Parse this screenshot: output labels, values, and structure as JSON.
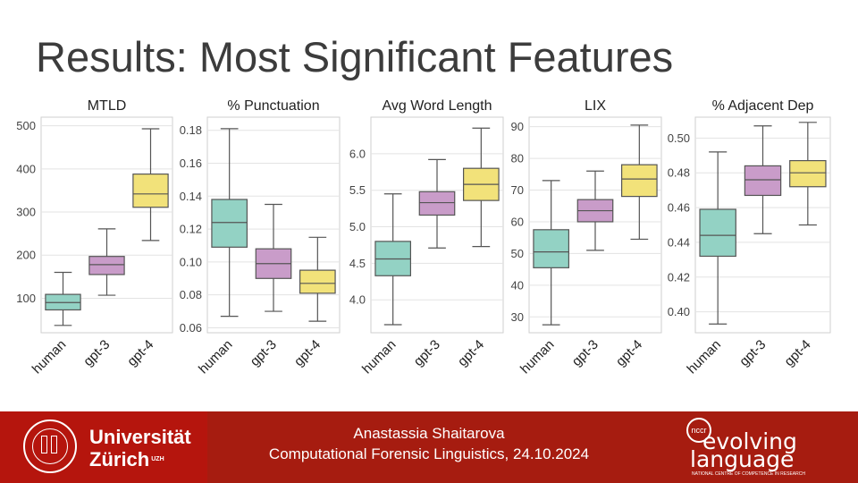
{
  "slide_title": "Results: Most Significant Features",
  "chart_data": [
    {
      "type": "box",
      "title": "MTLD",
      "categories": [
        "human",
        "gpt-3",
        "gpt-4"
      ],
      "colors": [
        "#93d2c4",
        "#c99cc9",
        "#f2e27a"
      ],
      "yticks": [
        100,
        200,
        300,
        400,
        500
      ],
      "ylim": [
        20,
        520
      ],
      "boxes": [
        {
          "whisker_low": 37,
          "q1": 73,
          "median": 90,
          "q3": 109,
          "whisker_high": 160
        },
        {
          "whisker_low": 107,
          "q1": 155,
          "median": 178,
          "q3": 197,
          "whisker_high": 261
        },
        {
          "whisker_low": 234,
          "q1": 311,
          "median": 342,
          "q3": 388,
          "whisker_high": 493
        }
      ]
    },
    {
      "type": "box",
      "title": "% Punctuation",
      "categories": [
        "human",
        "gpt-3",
        "gpt-4"
      ],
      "colors": [
        "#93d2c4",
        "#c99cc9",
        "#f2e27a"
      ],
      "yticks": [
        0.06,
        0.08,
        0.1,
        0.12,
        0.14,
        0.16,
        0.18
      ],
      "ytick_labels": [
        "0.06",
        "0.08",
        "0.10",
        "0.12",
        "0.14",
        "0.16",
        "0.18"
      ],
      "ylim": [
        0.057,
        0.188
      ],
      "boxes": [
        {
          "whisker_low": 0.067,
          "q1": 0.109,
          "median": 0.124,
          "q3": 0.138,
          "whisker_high": 0.181
        },
        {
          "whisker_low": 0.07,
          "q1": 0.09,
          "median": 0.099,
          "q3": 0.108,
          "whisker_high": 0.135
        },
        {
          "whisker_low": 0.064,
          "q1": 0.081,
          "median": 0.087,
          "q3": 0.095,
          "whisker_high": 0.115
        }
      ]
    },
    {
      "type": "box",
      "title": "Avg Word Length",
      "categories": [
        "human",
        "gpt-3",
        "gpt-4"
      ],
      "colors": [
        "#93d2c4",
        "#c99cc9",
        "#f2e27a"
      ],
      "yticks": [
        4.0,
        4.5,
        5.0,
        5.5,
        6.0
      ],
      "ytick_labels": [
        "4.0",
        "4.5",
        "5.0",
        "5.5",
        "6.0"
      ],
      "ylim": [
        3.55,
        6.5
      ],
      "boxes": [
        {
          "whisker_low": 3.66,
          "q1": 4.33,
          "median": 4.56,
          "q3": 4.8,
          "whisker_high": 5.45
        },
        {
          "whisker_low": 4.71,
          "q1": 5.16,
          "median": 5.33,
          "q3": 5.48,
          "whisker_high": 5.92
        },
        {
          "whisker_low": 4.73,
          "q1": 5.36,
          "median": 5.58,
          "q3": 5.8,
          "whisker_high": 6.35
        }
      ]
    },
    {
      "type": "box",
      "title": "LIX",
      "categories": [
        "human",
        "gpt-3",
        "gpt-4"
      ],
      "colors": [
        "#93d2c4",
        "#c99cc9",
        "#f2e27a"
      ],
      "yticks": [
        30,
        40,
        50,
        60,
        70,
        80,
        90
      ],
      "ylim": [
        25,
        93
      ],
      "boxes": [
        {
          "whisker_low": 27.5,
          "q1": 45.5,
          "median": 50.5,
          "q3": 57.5,
          "whisker_high": 73
        },
        {
          "whisker_low": 51,
          "q1": 60,
          "median": 63.5,
          "q3": 67,
          "whisker_high": 76
        },
        {
          "whisker_low": 54.5,
          "q1": 68,
          "median": 73.5,
          "q3": 78,
          "whisker_high": 90.5
        }
      ]
    },
    {
      "type": "box",
      "title": "% Adjacent Dep",
      "categories": [
        "human",
        "gpt-3",
        "gpt-4"
      ],
      "colors": [
        "#93d2c4",
        "#c99cc9",
        "#f2e27a"
      ],
      "yticks": [
        0.4,
        0.42,
        0.44,
        0.46,
        0.48,
        0.5
      ],
      "ytick_labels": [
        "0.40",
        "0.42",
        "0.44",
        "0.46",
        "0.48",
        "0.50"
      ],
      "ylim": [
        0.388,
        0.512
      ],
      "boxes": [
        {
          "whisker_low": 0.393,
          "q1": 0.432,
          "median": 0.444,
          "q3": 0.459,
          "whisker_high": 0.492
        },
        {
          "whisker_low": 0.445,
          "q1": 0.467,
          "median": 0.476,
          "q3": 0.484,
          "whisker_high": 0.507
        },
        {
          "whisker_low": 0.45,
          "q1": 0.472,
          "median": 0.48,
          "q3": 0.487,
          "whisker_high": 0.509
        }
      ]
    }
  ],
  "footer": {
    "university_line1": "Universität",
    "university_line2": "Zürich",
    "university_sup": "UZH",
    "author": "Anastassia Shaitarova",
    "event": "Computational Forensic Linguistics, 24.10.2024",
    "nccr_badge": "nccr",
    "nccr_word1": "evolving",
    "nccr_word2": "language",
    "nccr_tagline": "NATIONAL CENTRE OF COMPETENCE IN RESEARCH"
  }
}
